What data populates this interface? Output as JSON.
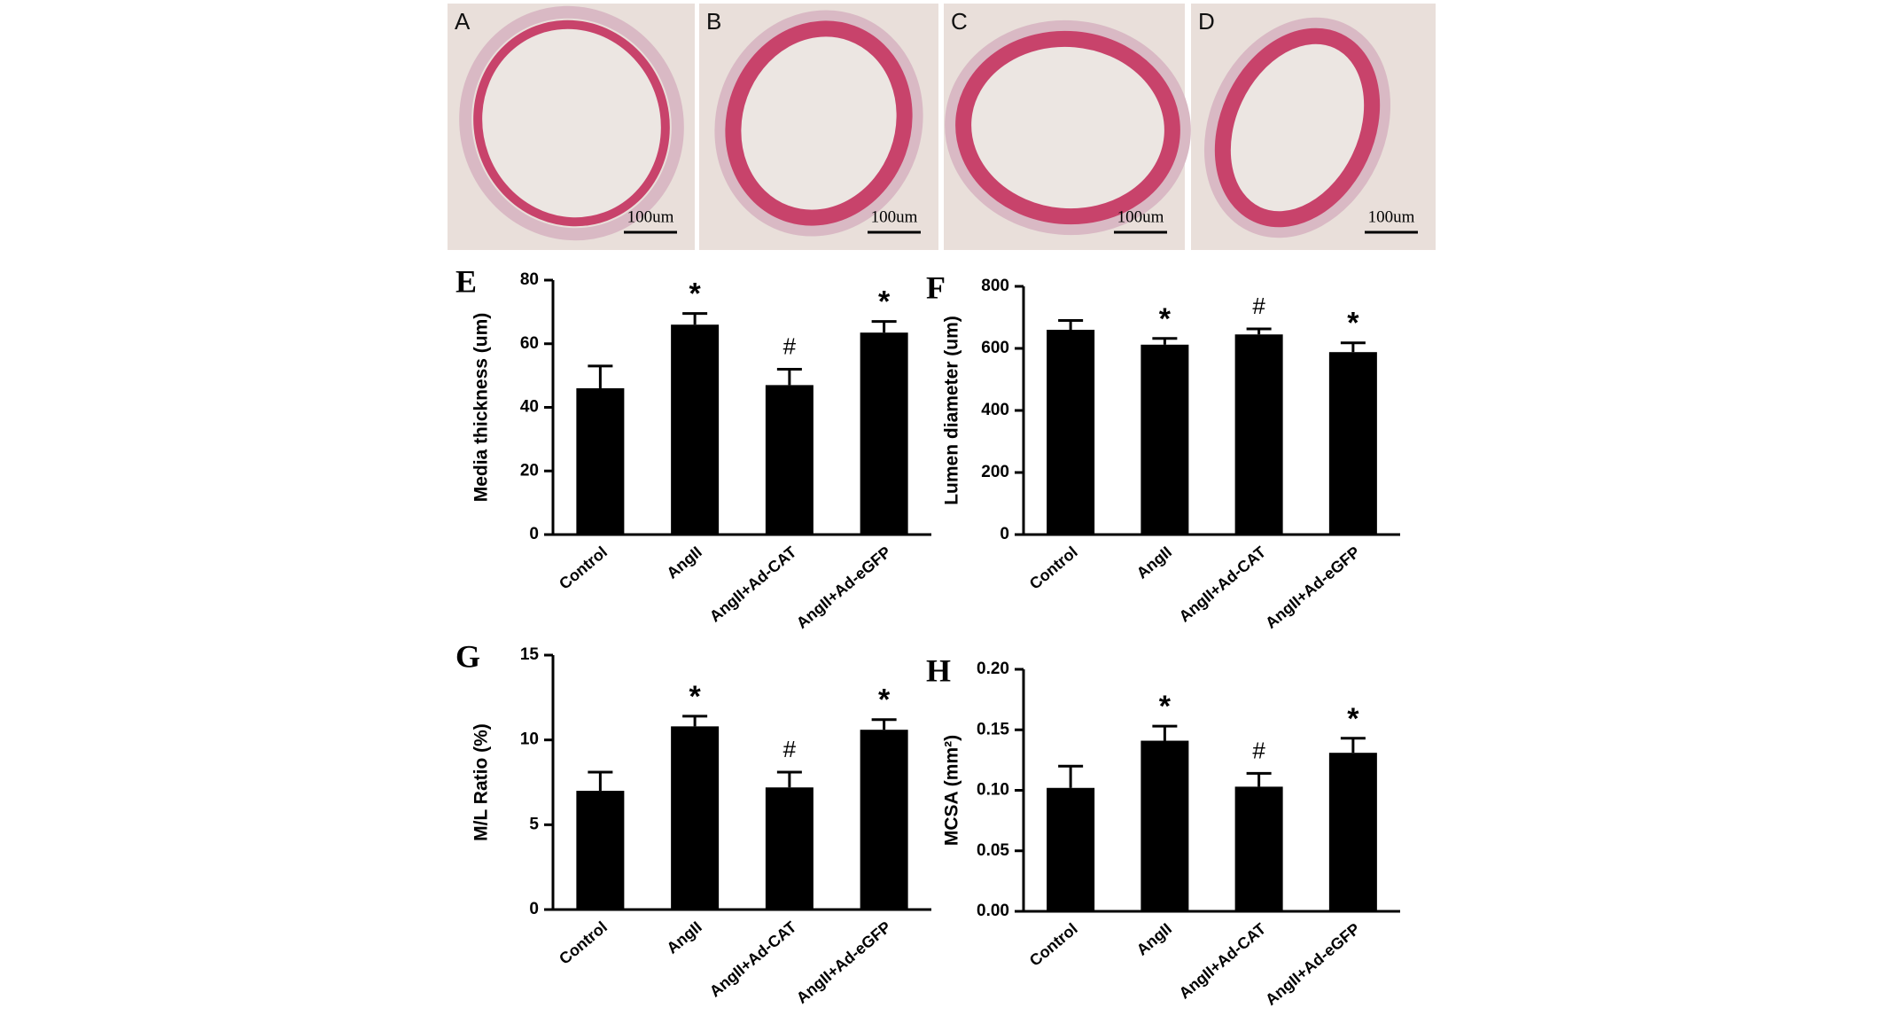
{
  "image_panels": [
    {
      "label": "A",
      "scale_bar": "100um"
    },
    {
      "label": "B",
      "scale_bar": "100um"
    },
    {
      "label": "C",
      "scale_bar": "100um"
    },
    {
      "label": "D",
      "scale_bar": "100um"
    }
  ],
  "chart_data": [
    {
      "type": "bar",
      "panel_label": "E",
      "y_label": "Media thickness (um)",
      "categories": [
        "Control",
        "AngII",
        "AngII+Ad-CAT",
        "AngII+Ad-eGFP"
      ],
      "values": [
        46,
        66,
        47,
        63.5
      ],
      "errors": [
        7,
        3.5,
        5,
        3.5
      ],
      "annotations": [
        null,
        "*",
        "#",
        "*"
      ],
      "color": "#000000",
      "ylim": [
        0,
        80
      ],
      "yticks": [
        0,
        20,
        40,
        60,
        80
      ]
    },
    {
      "type": "bar",
      "panel_label": "F",
      "y_label": "Lumen diameter (um)",
      "categories": [
        "Control",
        "AngII",
        "AngII+Ad-CAT",
        "AngII+Ad-eGFP"
      ],
      "values": [
        660,
        612,
        645,
        588
      ],
      "errors": [
        30,
        20,
        18,
        30
      ],
      "annotations": [
        null,
        "*",
        "#",
        "*"
      ],
      "color": "#000000",
      "ylim": [
        0,
        800
      ],
      "yticks": [
        0,
        200,
        400,
        600,
        800
      ]
    },
    {
      "type": "bar",
      "panel_label": "G",
      "y_label": "M/L Ratio (%)",
      "categories": [
        "Control",
        "AngII",
        "AngII+Ad-CAT",
        "AngII+Ad-eGFP"
      ],
      "values": [
        7.0,
        10.8,
        7.2,
        10.6
      ],
      "errors": [
        1.1,
        0.6,
        0.9,
        0.6
      ],
      "annotations": [
        null,
        "*",
        "#",
        "*"
      ],
      "color": "#000000",
      "ylim": [
        0,
        15
      ],
      "yticks": [
        0,
        5,
        10,
        15
      ]
    },
    {
      "type": "bar",
      "panel_label": "H",
      "y_label": "MCSA (mm²)",
      "categories": [
        "Control",
        "AngII",
        "AngII+Ad-CAT",
        "AngII+Ad-eGFP"
      ],
      "values": [
        0.102,
        0.141,
        0.103,
        0.131
      ],
      "errors": [
        0.018,
        0.012,
        0.011,
        0.012
      ],
      "annotations": [
        null,
        "*",
        "#",
        "*"
      ],
      "color": "#000000",
      "ylim": [
        0,
        0.2
      ],
      "yticks": [
        {
          "value": 0,
          "label": "0.00"
        },
        {
          "value": 0.05,
          "label": "0.05"
        },
        {
          "value": 0.1,
          "label": "0.10"
        },
        {
          "value": 0.15,
          "label": "0.15"
        },
        {
          "value": 0.2,
          "label": "0.20"
        }
      ]
    }
  ]
}
